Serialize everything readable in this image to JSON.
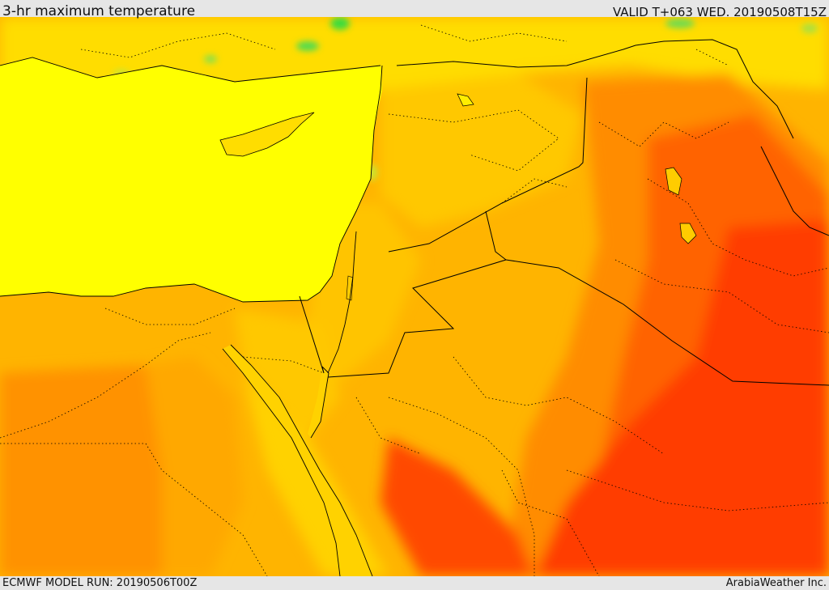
{
  "header": {
    "title": "3-hr maximum temperature",
    "valid_time": "VALID T+063 WED. 20190508T15Z"
  },
  "footer": {
    "model_run": "ECMWF MODEL RUN: 20190506T00Z",
    "credit": "ArabiaWeather Inc."
  },
  "colors": {
    "sea": "#ffff00",
    "warm_yellow": "#ffdd00",
    "light_orange": "#ffb400",
    "orange": "#ff8c00",
    "dark_orange": "#ff6400",
    "red_orange": "#ff3c00",
    "cool_green": "#3cdc3c",
    "border_line": "#000000"
  }
}
